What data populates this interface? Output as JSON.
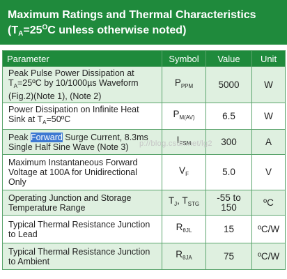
{
  "title": {
    "line1": "Maximum Ratings and Thermal Characteristics",
    "line2_pre": "(T",
    "line2_sub": "A",
    "line2_mid": "=25",
    "line2_sup": "O",
    "line2_post": "C unless otherwise noted)"
  },
  "columns": [
    "Parameter",
    "Symbol",
    "Value",
    "Unit"
  ],
  "rows": [
    {
      "p1": "Peak Pulse Power Dissipation at",
      "p2a": "T",
      "p2s": "A",
      "p2b": "=25ºC by 10/1000µs Waveform",
      "p3": "(Fig.2)(Note 1), (Note 2)",
      "sym": "P",
      "symsub": "PPM",
      "value": "5000",
      "unit": "W"
    },
    {
      "p1": "Power Dissipation on Infinite Heat",
      "p2a": "Sink at T",
      "p2s": "A",
      "p2b": "=50ºC",
      "sym": "P",
      "symsub": "M(AV)",
      "value": "6.5",
      "unit": "W"
    },
    {
      "p1a": "Peak ",
      "p1hl": "Forward",
      "p1b": " Surge Current, 8.3ms",
      "p2": "Single Half Sine Wave (Note 3)",
      "sym": "I",
      "symsub": "FSM",
      "value": "300",
      "unit": "A"
    },
    {
      "p1": "Maximum Instantaneous Forward",
      "p2": "Voltage at 100A for Unidirectional",
      "p3": "Only",
      "sym": "V",
      "symsub": "F",
      "value": "5.0",
      "unit": "V"
    },
    {
      "p1": "Operating Junction and Storage",
      "p2": "Temperature Range",
      "sym1": "T",
      "sym1sub": "J",
      "symsep": ", ",
      "sym2": "T",
      "sym2sub": "STG",
      "value": "-55 to 150",
      "unit": "ºC"
    },
    {
      "p1": "Typical Thermal Resistance Junction",
      "p2": "to Lead",
      "sym": "R",
      "symsub": "θJL",
      "value": "15",
      "unit": "ºC/W"
    },
    {
      "p1": "Typical Thermal Resistance Junction",
      "p2": "to Ambient",
      "sym": "R",
      "symsub": "θJA",
      "value": "75",
      "unit": "ºC/W"
    }
  ],
  "watermark": "p://blog.csdn.net/lg2"
}
